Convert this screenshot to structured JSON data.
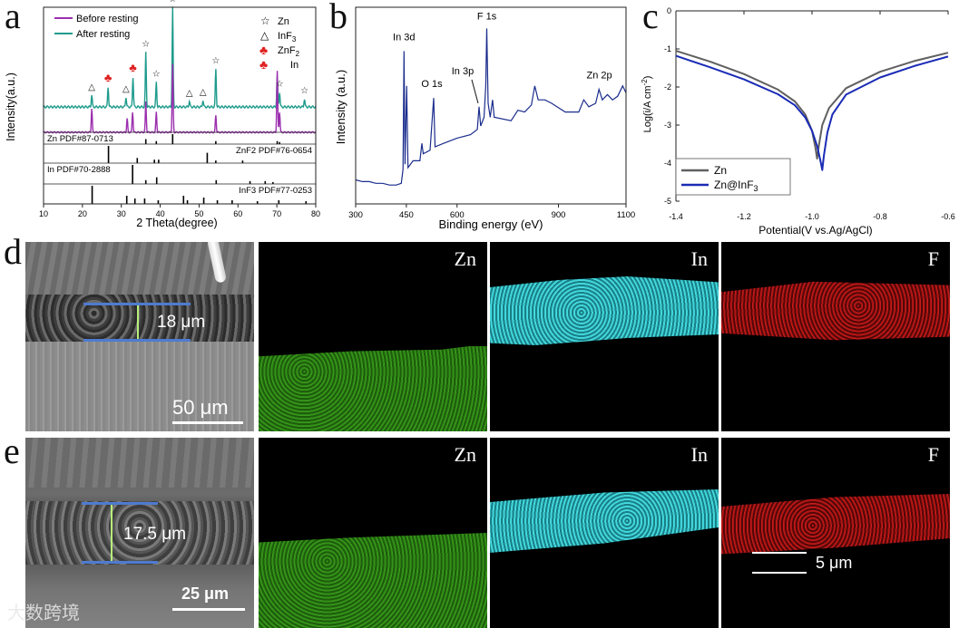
{
  "panels": {
    "a": "a",
    "b": "b",
    "c": "c",
    "d": "d",
    "e": "e"
  },
  "chart_data": [
    {
      "id": "a",
      "type": "line",
      "xlabel": "2 Theta(degree)",
      "ylabel": "Intensity(a.u.)",
      "xlim": [
        10,
        80
      ],
      "xticks": [
        10,
        20,
        30,
        40,
        50,
        60,
        70,
        80
      ],
      "legend": [
        "Before resting",
        "After resting"
      ],
      "colors": {
        "before": "#9b2fae",
        "after": "#1f9b8c"
      },
      "marker_legend": [
        {
          "symbol": "☆",
          "label": "Zn"
        },
        {
          "symbol": "△",
          "label": "InF3"
        },
        {
          "symbol": "♣",
          "label": "ZnF2"
        },
        {
          "symbol": "♣",
          "label": "In"
        }
      ],
      "after_peaks": [
        {
          "x": 22.4,
          "h": 0.12
        },
        {
          "x": 26.6,
          "h": 0.2
        },
        {
          "x": 31.2,
          "h": 0.1
        },
        {
          "x": 33.0,
          "h": 0.3
        },
        {
          "x": 36.3,
          "h": 0.55
        },
        {
          "x": 39.0,
          "h": 0.25
        },
        {
          "x": 43.2,
          "h": 1.0
        },
        {
          "x": 47.5,
          "h": 0.06
        },
        {
          "x": 51.0,
          "h": 0.07
        },
        {
          "x": 54.3,
          "h": 0.38
        },
        {
          "x": 70.1,
          "h": 0.31
        },
        {
          "x": 70.7,
          "h": 0.15
        },
        {
          "x": 77.1,
          "h": 0.08
        }
      ],
      "before_peaks": [
        {
          "x": 22.4,
          "h": 0.35
        },
        {
          "x": 31.5,
          "h": 0.2
        },
        {
          "x": 32.9,
          "h": 0.3
        },
        {
          "x": 36.3,
          "h": 0.45
        },
        {
          "x": 39.0,
          "h": 0.3
        },
        {
          "x": 43.2,
          "h": 1.0
        },
        {
          "x": 54.3,
          "h": 0.25
        },
        {
          "x": 70.1,
          "h": 0.9
        },
        {
          "x": 70.7,
          "h": 0.3
        }
      ],
      "peak_markers": [
        {
          "x": 22.4,
          "symbol": "△",
          "type": "InF3"
        },
        {
          "x": 26.6,
          "symbol": "♣",
          "type": "ZnF2"
        },
        {
          "x": 31.2,
          "symbol": "△",
          "type": "InF3"
        },
        {
          "x": 33.0,
          "symbol": "♣",
          "type": "In"
        },
        {
          "x": 36.3,
          "symbol": "☆",
          "type": "Zn"
        },
        {
          "x": 39.0,
          "symbol": "☆",
          "type": "Zn"
        },
        {
          "x": 43.2,
          "symbol": "☆",
          "type": "Zn"
        },
        {
          "x": 47.5,
          "symbol": "△",
          "type": "InF3"
        },
        {
          "x": 51.0,
          "symbol": "△",
          "type": "InF3"
        },
        {
          "x": 54.3,
          "symbol": "☆",
          "type": "Zn"
        },
        {
          "x": 70.7,
          "symbol": "☆",
          "type": "Zn"
        },
        {
          "x": 77.1,
          "symbol": "☆",
          "type": "Zn"
        }
      ],
      "references": [
        {
          "label": "Zn  PDF#87-0713",
          "align": "left",
          "lines": [
            {
              "x": 36.3,
              "h": 0.5
            },
            {
              "x": 39.0,
              "h": 0.3
            },
            {
              "x": 43.2,
              "h": 1.0
            },
            {
              "x": 54.3,
              "h": 0.3
            },
            {
              "x": 70.1,
              "h": 0.3
            },
            {
              "x": 70.7,
              "h": 0.2
            }
          ]
        },
        {
          "label": "ZnF2  PDF#76-0654",
          "align": "right",
          "lines": [
            {
              "x": 26.7,
              "h": 1.0
            },
            {
              "x": 34.1,
              "h": 0.3
            },
            {
              "x": 38.5,
              "h": 0.2
            },
            {
              "x": 39.6,
              "h": 0.2
            },
            {
              "x": 52.1,
              "h": 0.6
            },
            {
              "x": 54.3,
              "h": 0.15
            },
            {
              "x": 61.2,
              "h": 0.15
            }
          ]
        },
        {
          "label": "In  PDF#70-2888",
          "align": "left",
          "lines": [
            {
              "x": 32.9,
              "h": 1.0
            },
            {
              "x": 36.3,
              "h": 0.2
            },
            {
              "x": 39.1,
              "h": 0.35
            },
            {
              "x": 54.4,
              "h": 0.2
            },
            {
              "x": 63.1,
              "h": 0.15
            },
            {
              "x": 67.0,
              "h": 0.15
            },
            {
              "x": 69.0,
              "h": 0.1
            }
          ]
        },
        {
          "label": "InF3  PDF#77-0253",
          "align": "right",
          "lines": [
            {
              "x": 22.5,
              "h": 1.0
            },
            {
              "x": 31.4,
              "h": 0.45
            },
            {
              "x": 33.5,
              "h": 0.3
            },
            {
              "x": 36.0,
              "h": 0.3
            },
            {
              "x": 39.5,
              "h": 0.2
            },
            {
              "x": 46.0,
              "h": 0.45
            },
            {
              "x": 47.0,
              "h": 0.2
            },
            {
              "x": 51.2,
              "h": 0.35
            },
            {
              "x": 54.7,
              "h": 0.2
            },
            {
              "x": 58.5,
              "h": 0.2
            },
            {
              "x": 65.0,
              "h": 0.15
            },
            {
              "x": 70.5,
              "h": 0.2
            },
            {
              "x": 77.5,
              "h": 0.15
            }
          ]
        }
      ]
    },
    {
      "id": "b",
      "type": "line",
      "xlabel": "Binding energy (eV)",
      "ylabel": "Intensity (a.u.)",
      "xlim": [
        300,
        1100
      ],
      "xticks": [
        300,
        450,
        600,
        900,
        1100
      ],
      "color": "#1a2c8c",
      "spectrum": [
        [
          300,
          0.06
        ],
        [
          320,
          0.05
        ],
        [
          340,
          0.05
        ],
        [
          360,
          0.04
        ],
        [
          380,
          0.04
        ],
        [
          400,
          0.03
        ],
        [
          420,
          0.03
        ],
        [
          435,
          0.04
        ],
        [
          440,
          0.12
        ],
        [
          443,
          0.8
        ],
        [
          446,
          0.15
        ],
        [
          451,
          0.6
        ],
        [
          455,
          0.13
        ],
        [
          470,
          0.17
        ],
        [
          490,
          0.17
        ],
        [
          496,
          0.27
        ],
        [
          500,
          0.21
        ],
        [
          520,
          0.23
        ],
        [
          531,
          0.53
        ],
        [
          535,
          0.25
        ],
        [
          560,
          0.27
        ],
        [
          600,
          0.3
        ],
        [
          640,
          0.32
        ],
        [
          660,
          0.35
        ],
        [
          665,
          0.48
        ],
        [
          670,
          0.37
        ],
        [
          680,
          0.42
        ],
        [
          685,
          0.6
        ],
        [
          688,
          0.93
        ],
        [
          692,
          0.5
        ],
        [
          698,
          0.42
        ],
        [
          705,
          0.52
        ],
        [
          710,
          0.42
        ],
        [
          760,
          0.4
        ],
        [
          780,
          0.46
        ],
        [
          800,
          0.45
        ],
        [
          820,
          0.49
        ],
        [
          830,
          0.6
        ],
        [
          840,
          0.52
        ],
        [
          860,
          0.52
        ],
        [
          880,
          0.5
        ],
        [
          920,
          0.45
        ],
        [
          960,
          0.45
        ],
        [
          975,
          0.52
        ],
        [
          990,
          0.48
        ],
        [
          1010,
          0.5
        ],
        [
          1020,
          0.58
        ],
        [
          1030,
          0.52
        ],
        [
          1045,
          0.55
        ],
        [
          1060,
          0.52
        ],
        [
          1075,
          0.54
        ],
        [
          1090,
          0.6
        ],
        [
          1100,
          0.56
        ]
      ],
      "annotations": [
        {
          "label": "In 3d",
          "x": 443
        },
        {
          "label": "O 1s",
          "x": 531
        },
        {
          "label": "In 3p",
          "x": 665
        },
        {
          "label": "F 1s",
          "x": 688
        },
        {
          "label": "Zn 2p",
          "x": 1021
        }
      ]
    },
    {
      "id": "c",
      "type": "line",
      "xlabel": "Potential(V vs.Ag/AgCl)",
      "ylabel": "Log(i/A cm^-2)",
      "xlim": [
        -1.4,
        -0.6
      ],
      "ylim": [
        -5,
        0
      ],
      "xticks": [
        "-1.4",
        "-1.2",
        "-1.0",
        "-0.8",
        "-0.6"
      ],
      "yticks": [
        "0",
        "-1",
        "-2",
        "-3",
        "-4",
        "-5"
      ],
      "series": [
        {
          "name": "Zn",
          "color": "#606060",
          "ecorr": -0.985,
          "points": [
            [
              -1.4,
              -1.05
            ],
            [
              -1.3,
              -1.33
            ],
            [
              -1.2,
              -1.66
            ],
            [
              -1.1,
              -2.07
            ],
            [
              -1.05,
              -2.38
            ],
            [
              -1.02,
              -2.72
            ],
            [
              -1.0,
              -3.15
            ],
            [
              -0.99,
              -3.6
            ],
            [
              -0.985,
              -3.88
            ],
            [
              -0.98,
              -3.55
            ],
            [
              -0.97,
              -3.0
            ],
            [
              -0.95,
              -2.55
            ],
            [
              -0.9,
              -2.03
            ],
            [
              -0.8,
              -1.6
            ],
            [
              -0.7,
              -1.32
            ],
            [
              -0.6,
              -1.1
            ]
          ]
        },
        {
          "name": "Zn@InF3",
          "color": "#1a2bb5",
          "ecorr": -0.97,
          "points": [
            [
              -1.4,
              -1.18
            ],
            [
              -1.3,
              -1.48
            ],
            [
              -1.2,
              -1.8
            ],
            [
              -1.1,
              -2.19
            ],
            [
              -1.05,
              -2.48
            ],
            [
              -1.02,
              -2.8
            ],
            [
              -1.0,
              -3.15
            ],
            [
              -0.985,
              -3.55
            ],
            [
              -0.975,
              -3.95
            ],
            [
              -0.97,
              -4.18
            ],
            [
              -0.965,
              -3.8
            ],
            [
              -0.955,
              -3.2
            ],
            [
              -0.94,
              -2.72
            ],
            [
              -0.9,
              -2.2
            ],
            [
              -0.8,
              -1.75
            ],
            [
              -0.7,
              -1.45
            ],
            [
              -0.6,
              -1.2
            ]
          ]
        }
      ]
    }
  ],
  "row_d": {
    "scale_label": "50 μm",
    "thickness": "18 μm",
    "elements": [
      "Zn",
      "In",
      "F"
    ]
  },
  "row_e": {
    "scale_label": "25 μm",
    "thickness": "17.5 μm",
    "elements": [
      "Zn",
      "In",
      "F"
    ],
    "scale_label_f": "5 μm"
  },
  "watermark": "大数跨境"
}
